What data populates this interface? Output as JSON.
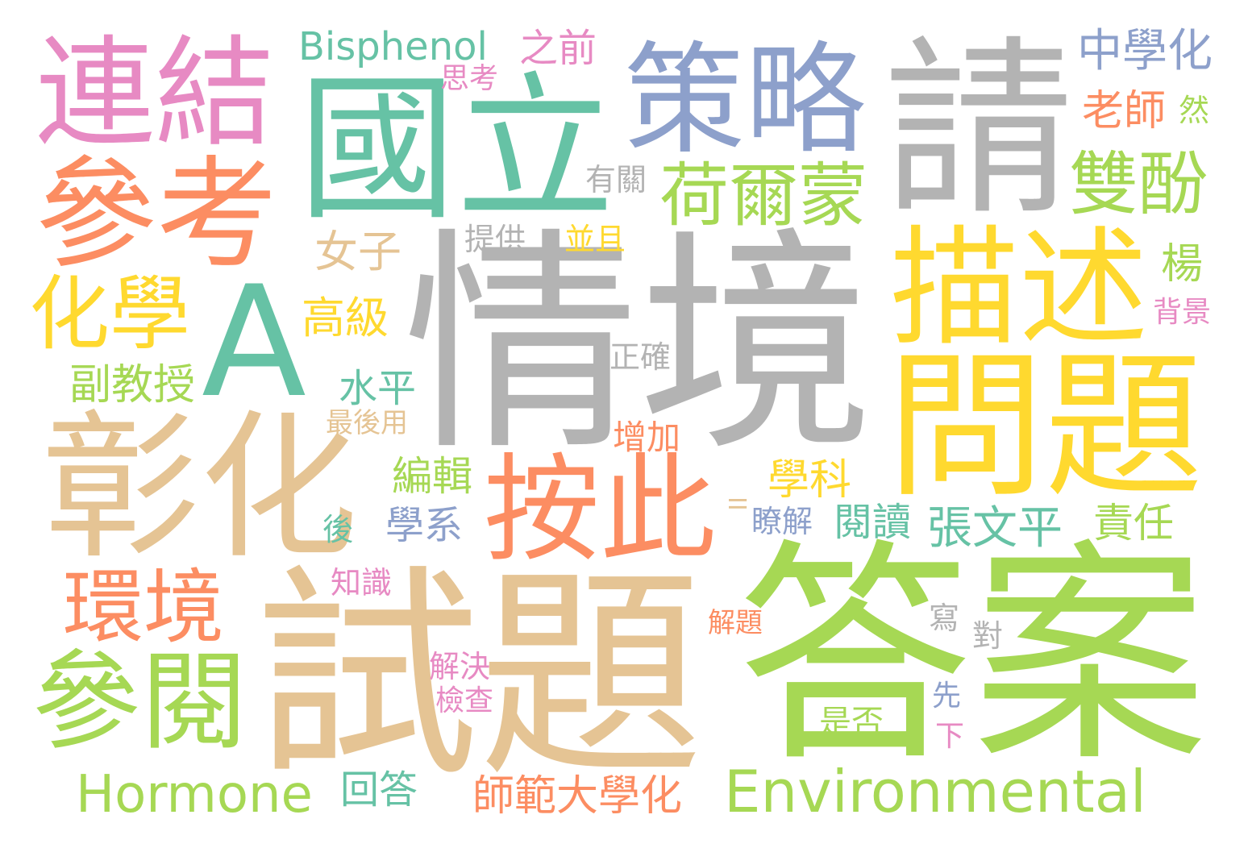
{
  "word_cloud": {
    "palette": {
      "gray": "#b3b3b3",
      "teal": "#66c2a5",
      "orange": "#fc8d62",
      "blue": "#8da0cb",
      "pink": "#e78ac3",
      "green": "#a6d854",
      "yellow": "#ffd92f",
      "tan": "#e5c494"
    },
    "words": [
      {
        "text": "情境",
        "color": "#b3b3b3"
      },
      {
        "text": "試題",
        "color": "#e5c494"
      },
      {
        "text": "答案",
        "color": "#a6d854"
      },
      {
        "text": "國立",
        "color": "#66c2a5"
      },
      {
        "text": "請",
        "color": "#b3b3b3"
      },
      {
        "text": "彰化",
        "color": "#e5c494"
      },
      {
        "text": "問題",
        "color": "#ffd92f"
      },
      {
        "text": "策略",
        "color": "#8da0cb"
      },
      {
        "text": "描述",
        "color": "#ffd92f"
      },
      {
        "text": "連結",
        "color": "#e78ac3"
      },
      {
        "text": "參考",
        "color": "#fc8d62"
      },
      {
        "text": "A",
        "color": "#66c2a5"
      },
      {
        "text": "按此",
        "color": "#fc8d62"
      },
      {
        "text": "參閱",
        "color": "#a6d854"
      },
      {
        "text": "Environmental",
        "color": "#a6d854"
      },
      {
        "text": "環境",
        "color": "#fc8d62"
      },
      {
        "text": "荷爾蒙",
        "color": "#a6d854"
      },
      {
        "text": "雙酚",
        "color": "#a6d854"
      },
      {
        "text": "化學",
        "color": "#ffd92f"
      },
      {
        "text": "Hormone",
        "color": "#a6d854"
      },
      {
        "text": "Bisphenol",
        "color": "#66c2a5"
      },
      {
        "text": "中學化",
        "color": "#8da0cb"
      },
      {
        "text": "張文平",
        "color": "#66c2a5"
      },
      {
        "text": "師範大學化",
        "color": "#fc8d62"
      },
      {
        "text": "副教授",
        "color": "#a6d854"
      },
      {
        "text": "老師",
        "color": "#fc8d62"
      },
      {
        "text": "之前",
        "color": "#e78ac3"
      },
      {
        "text": "女子",
        "color": "#e5c494"
      },
      {
        "text": "高級",
        "color": "#ffd92f"
      },
      {
        "text": "學科",
        "color": "#ffd92f"
      },
      {
        "text": "責任",
        "color": "#a6d854"
      },
      {
        "text": "編輯",
        "color": "#a6d854"
      },
      {
        "text": "水平",
        "color": "#66c2a5"
      },
      {
        "text": "回答",
        "color": "#66c2a5"
      },
      {
        "text": "閱讀",
        "color": "#66c2a5"
      },
      {
        "text": "學系",
        "color": "#8da0cb"
      },
      {
        "text": "楊",
        "color": "#a6d854"
      },
      {
        "text": "增加",
        "color": "#fc8d62"
      },
      {
        "text": "是否",
        "color": "#a6d854"
      },
      {
        "text": "最後用",
        "color": "#e5c494"
      },
      {
        "text": "思考",
        "color": "#e78ac3"
      },
      {
        "text": "有關",
        "color": "#b3b3b3"
      },
      {
        "text": "提供",
        "color": "#b3b3b3"
      },
      {
        "text": "並且",
        "color": "#ffd92f"
      },
      {
        "text": "正確",
        "color": "#b3b3b3"
      },
      {
        "text": "背景",
        "color": "#e78ac3"
      },
      {
        "text": "然",
        "color": "#a6d854"
      },
      {
        "text": "後",
        "color": "#66c2a5"
      },
      {
        "text": "知識",
        "color": "#e78ac3"
      },
      {
        "text": "瞭解",
        "color": "#8da0cb"
      },
      {
        "text": "解題",
        "color": "#fc8d62"
      },
      {
        "text": "解決",
        "color": "#e78ac3"
      },
      {
        "text": "檢查",
        "color": "#e78ac3"
      },
      {
        "text": "寫",
        "color": "#b3b3b3"
      },
      {
        "text": "對",
        "color": "#b3b3b3"
      },
      {
        "text": "先",
        "color": "#8da0cb"
      },
      {
        "text": "下",
        "color": "#e78ac3"
      },
      {
        "text": "II",
        "color": "#e5c494"
      }
    ]
  }
}
